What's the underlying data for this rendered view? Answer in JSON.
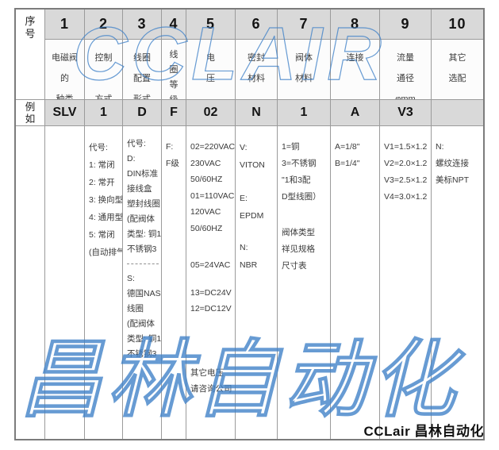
{
  "watermarks": {
    "top": "CCLAIR",
    "bottom": "昌林自动化",
    "color": "#4182c8"
  },
  "footer": {
    "brand": "CCLair 昌林自动化"
  },
  "table": {
    "serial_header_lines": [
      "序",
      "号"
    ],
    "example_header_lines": [
      "例",
      "如"
    ],
    "header_bg": "#d9d9d9",
    "columns": [
      {
        "no": "1",
        "title": [
          "电磁阀",
          "的",
          "种类"
        ],
        "example": "SLV",
        "groups": []
      },
      {
        "no": "2",
        "title": [
          "控制",
          "方式"
        ],
        "example": "1",
        "groups": [
          [
            "代号:",
            "1: 常闭",
            "2: 常开",
            "3: 换向型",
            "4: 通用型",
            "5: 常闭",
            "(自动排气)"
          ]
        ]
      },
      {
        "no": "3",
        "title": [
          "线圈",
          "配置",
          "形式"
        ],
        "example": "D",
        "groups": [
          [
            "代号:",
            "D:",
            "DIN标准",
            "接线盒",
            "塑封线圈",
            "(配阀体",
            "类型: 铜1",
            "不锈钢3"
          ],
          [
            "S:",
            "德国NASS",
            "线圈",
            "(配阀体",
            "类型: 铜1",
            "不锈钢3"
          ]
        ]
      },
      {
        "no": "4",
        "title": [
          "线",
          "圈",
          "等",
          "级"
        ],
        "example": "F",
        "groups": [
          [
            "F:",
            "F级"
          ]
        ]
      },
      {
        "no": "5",
        "title": [
          "电",
          "压"
        ],
        "example": "02",
        "groups": [
          [
            "02=220VAC",
            "230VAC",
            "50/60HZ",
            "01=110VAC",
            "120VAC",
            "50/60HZ"
          ],
          [
            "05=24VAC"
          ],
          [
            "13=DC24V",
            "12=DC12V"
          ],
          [
            "其它电压",
            "请咨询公司"
          ]
        ]
      },
      {
        "no": "6",
        "title": [
          "密封",
          "材料"
        ],
        "example": "N",
        "groups": [
          [
            "V:",
            "VITON"
          ],
          [
            "E:",
            "EPDM"
          ],
          [
            "N:",
            "NBR"
          ]
        ]
      },
      {
        "no": "7",
        "title": [
          "阀体",
          "材料"
        ],
        "example": "1",
        "groups": [
          [
            "1=铜",
            "3=不锈钢",
            "\"1和3配",
            "D型线圈）"
          ],
          [
            "阀体类型",
            "祥见规格",
            "尺寸表"
          ]
        ]
      },
      {
        "no": "8",
        "title": [
          "连接"
        ],
        "example": "A",
        "groups": [
          [
            "A=1/8\"",
            "B=1/4\""
          ]
        ]
      },
      {
        "no": "9",
        "title": [
          "流量",
          "通径",
          "φmm"
        ],
        "example": "V3",
        "groups": [
          [
            "V1=1.5×1.2",
            "V2=2.0×1.2",
            "V3=2.5×1.2",
            "V4=3.0×1.2"
          ]
        ]
      },
      {
        "no": "10",
        "title": [
          "其它",
          "选配"
        ],
        "example": "",
        "groups": [
          [
            "N:",
            "螺纹连接",
            "美标NPT"
          ]
        ]
      }
    ]
  }
}
